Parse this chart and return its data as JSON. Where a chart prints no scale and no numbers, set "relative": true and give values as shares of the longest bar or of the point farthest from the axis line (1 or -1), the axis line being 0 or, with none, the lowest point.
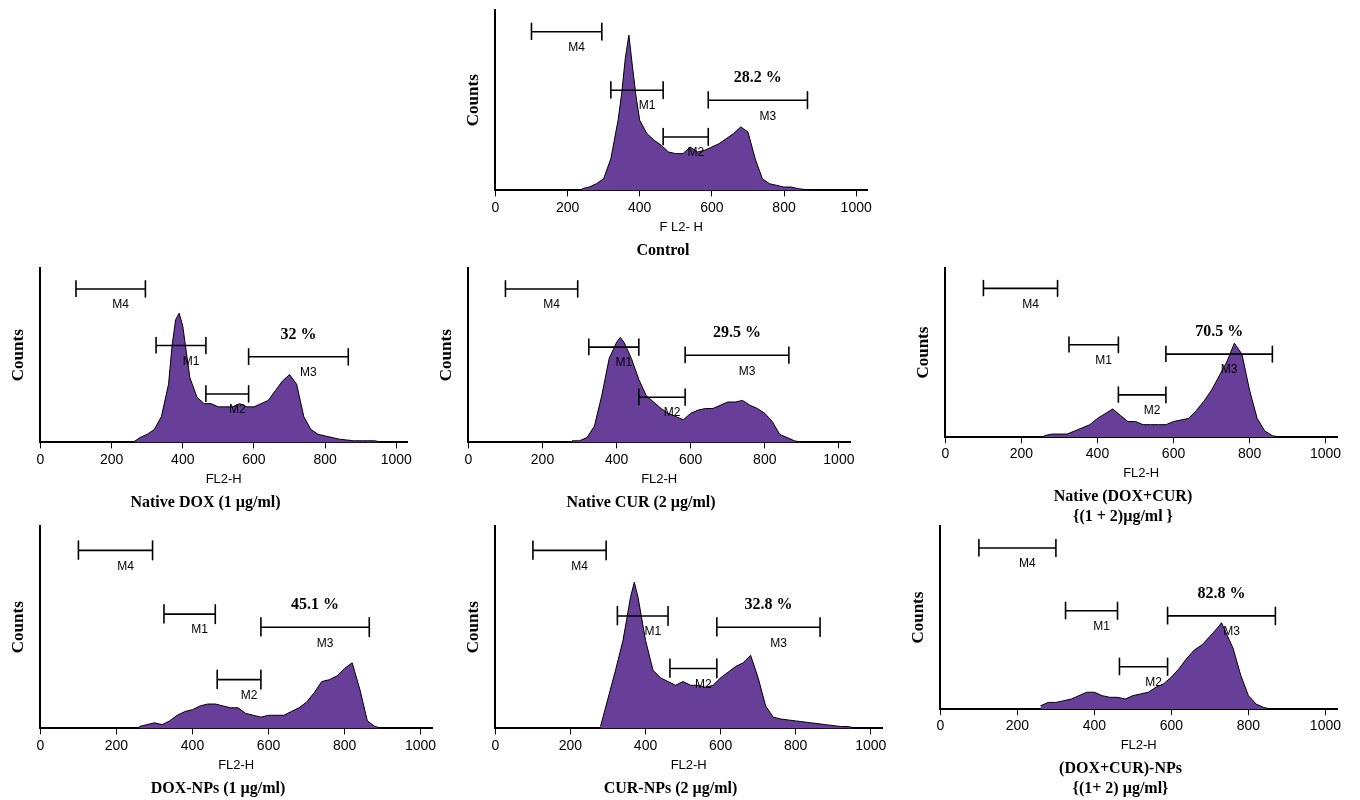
{
  "chart_data": [
    {
      "type": "area",
      "relative": true,
      "title": "Control",
      "xlabel": "F L2- H",
      "ylabel": "Counts",
      "xlim": [
        0,
        1030
      ],
      "xticks": [
        0,
        200,
        400,
        600,
        800,
        1000
      ],
      "grid": false,
      "legend": false,
      "marker": "none",
      "series": [
        {
          "color": "#673e98",
          "x": [
            240,
            260,
            280,
            300,
            320,
            340,
            350,
            360,
            370,
            380,
            390,
            400,
            420,
            440,
            460,
            480,
            500,
            520,
            540,
            560,
            580,
            600,
            620,
            640,
            660,
            680,
            700,
            720,
            740,
            760,
            780,
            800,
            820,
            840,
            860,
            880
          ],
          "values": [
            0.01,
            0.02,
            0.04,
            0.07,
            0.19,
            0.42,
            0.58,
            0.79,
            0.93,
            0.74,
            0.56,
            0.42,
            0.34,
            0.3,
            0.27,
            0.23,
            0.22,
            0.22,
            0.26,
            0.23,
            0.24,
            0.26,
            0.28,
            0.31,
            0.34,
            0.38,
            0.35,
            0.19,
            0.07,
            0.04,
            0.03,
            0.02,
            0.02,
            0.01,
            0.005,
            0
          ]
        },
        {
          "type": "line",
          "name": "M4",
          "color": "#000000",
          "x": [
            100,
            100,
            100,
            295,
            295,
            295
          ],
          "values": [
            0.9,
            1,
            0.95,
            0.95,
            1,
            0.9
          ]
        },
        {
          "type": "line",
          "name": "M1",
          "color": "#000000",
          "x": [
            320,
            320,
            320,
            465,
            465,
            465
          ],
          "values": [
            0.55,
            0.65,
            0.6,
            0.6,
            0.65,
            0.55
          ]
        },
        {
          "type": "line",
          "name": "M2",
          "color": "#000000",
          "x": [
            465,
            465,
            465,
            590,
            590,
            590
          ],
          "values": [
            0.27,
            0.37,
            0.32,
            0.32,
            0.37,
            0.27
          ]
        },
        {
          "type": "line",
          "name": "M3",
          "color": "#000000",
          "x": [
            590,
            590,
            590,
            865,
            865,
            865
          ],
          "values": [
            0.49,
            0.59,
            0.54,
            0.54,
            0.59,
            0.49
          ]
        }
      ],
      "annotations": [
        "28.2 %"
      ]
    },
    {
      "type": "area",
      "relative": true,
      "title": "Native DOX (1 µg/ml)",
      "xlabel": "FL2-H",
      "ylabel": "Counts",
      "xlim": [
        0,
        1030
      ],
      "xticks": [
        0,
        200,
        400,
        600,
        800,
        1000
      ],
      "grid": false,
      "legend": false,
      "marker": "none",
      "series": [
        {
          "color": "#673e98",
          "x": [
            260,
            280,
            300,
            320,
            340,
            360,
            370,
            380,
            390,
            400,
            410,
            420,
            440,
            460,
            480,
            500,
            520,
            540,
            560,
            580,
            600,
            620,
            640,
            660,
            680,
            700,
            720,
            740,
            760,
            780,
            800,
            840,
            880,
            920,
            940,
            960
          ],
          "values": [
            0,
            0.03,
            0.05,
            0.08,
            0.16,
            0.36,
            0.6,
            0.76,
            0.8,
            0.72,
            0.56,
            0.4,
            0.28,
            0.24,
            0.24,
            0.22,
            0.22,
            0.22,
            0.24,
            0.22,
            0.22,
            0.24,
            0.26,
            0.32,
            0.38,
            0.42,
            0.36,
            0.16,
            0.08,
            0.05,
            0.04,
            0.02,
            0.01,
            0.01,
            0.01,
            0
          ]
        },
        {
          "type": "line",
          "name": "M4",
          "color": "#000000",
          "x": [
            100,
            100,
            100,
            295,
            295,
            295
          ],
          "values": [
            0.9,
            1,
            0.95,
            0.95,
            1,
            0.9
          ]
        },
        {
          "type": "line",
          "name": "M1",
          "color": "#000000",
          "x": [
            325,
            325,
            325,
            465,
            465,
            465
          ],
          "values": [
            0.55,
            0.65,
            0.6,
            0.6,
            0.65,
            0.55
          ]
        },
        {
          "type": "line",
          "name": "M2",
          "color": "#000000",
          "x": [
            465,
            465,
            465,
            585,
            585,
            585
          ],
          "values": [
            0.25,
            0.35,
            0.3,
            0.3,
            0.35,
            0.25
          ]
        },
        {
          "type": "line",
          "name": "M3",
          "color": "#000000",
          "x": [
            585,
            585,
            585,
            865,
            865,
            865
          ],
          "values": [
            0.48,
            0.58,
            0.53,
            0.53,
            0.58,
            0.48
          ]
        }
      ],
      "annotations": [
        "32 %"
      ]
    },
    {
      "type": "area",
      "relative": true,
      "title": "Native CUR (2 µg/ml)",
      "xlabel": "FL2-H",
      "ylabel": "Counts",
      "xlim": [
        0,
        1030
      ],
      "xticks": [
        0,
        200,
        400,
        600,
        800,
        1000
      ],
      "grid": false,
      "legend": false,
      "marker": "none",
      "series": [
        {
          "color": "#673e98",
          "x": [
            280,
            300,
            320,
            340,
            360,
            380,
            400,
            410,
            420,
            440,
            460,
            480,
            500,
            520,
            540,
            560,
            580,
            600,
            620,
            640,
            660,
            680,
            700,
            720,
            740,
            760,
            780,
            800,
            820,
            840,
            860,
            880,
            900
          ],
          "values": [
            0.01,
            0.01,
            0.03,
            0.1,
            0.29,
            0.52,
            0.62,
            0.65,
            0.62,
            0.52,
            0.39,
            0.29,
            0.25,
            0.21,
            0.18,
            0.16,
            0.14,
            0.18,
            0.2,
            0.21,
            0.21,
            0.23,
            0.25,
            0.25,
            0.26,
            0.23,
            0.21,
            0.18,
            0.13,
            0.05,
            0.03,
            0.01,
            0
          ]
        },
        {
          "type": "line",
          "name": "M4",
          "color": "#000000",
          "x": [
            100,
            100,
            100,
            295,
            295,
            295
          ],
          "values": [
            0.9,
            1,
            0.95,
            0.95,
            1,
            0.9
          ]
        },
        {
          "type": "line",
          "name": "M1",
          "color": "#000000",
          "x": [
            325,
            325,
            325,
            460,
            460,
            460
          ],
          "values": [
            0.54,
            0.64,
            0.59,
            0.59,
            0.64,
            0.54
          ]
        },
        {
          "type": "line",
          "name": "M2",
          "color": "#000000",
          "x": [
            460,
            460,
            460,
            585,
            585,
            585
          ],
          "values": [
            0.23,
            0.33,
            0.28,
            0.28,
            0.33,
            0.23
          ]
        },
        {
          "type": "line",
          "name": "M3",
          "color": "#000000",
          "x": [
            585,
            585,
            585,
            865,
            865,
            865
          ],
          "values": [
            0.49,
            0.59,
            0.54,
            0.54,
            0.59,
            0.49
          ]
        }
      ],
      "annotations": [
        "29.5 %"
      ]
    },
    {
      "type": "area",
      "relative": true,
      "title": "Native (DOX+CUR)",
      "subtitle": "{(1 + 2)µg/ml }",
      "xlabel": "FL2-H",
      "ylabel": "Counts",
      "xlim": [
        0,
        1030
      ],
      "xticks": [
        0,
        200,
        400,
        600,
        800,
        1000
      ],
      "grid": false,
      "legend": false,
      "marker": "none",
      "series": [
        {
          "color": "#673e98",
          "x": [
            260,
            280,
            300,
            320,
            340,
            360,
            380,
            400,
            420,
            440,
            460,
            480,
            500,
            520,
            540,
            560,
            580,
            600,
            620,
            640,
            660,
            680,
            700,
            720,
            740,
            760,
            780,
            800,
            820,
            840,
            860,
            880
          ],
          "values": [
            0.01,
            0.02,
            0.02,
            0.02,
            0.04,
            0.06,
            0.08,
            0.12,
            0.15,
            0.18,
            0.14,
            0.1,
            0.1,
            0.08,
            0.08,
            0.08,
            0.08,
            0.1,
            0.11,
            0.12,
            0.17,
            0.23,
            0.3,
            0.39,
            0.48,
            0.6,
            0.53,
            0.3,
            0.12,
            0.04,
            0.01,
            0
          ]
        },
        {
          "type": "line",
          "name": "M4",
          "color": "#000000",
          "x": [
            100,
            100,
            100,
            295,
            295,
            295
          ],
          "values": [
            0.9,
            1,
            0.95,
            0.95,
            1,
            0.9
          ]
        },
        {
          "type": "line",
          "name": "M1",
          "color": "#000000",
          "x": [
            325,
            325,
            325,
            455,
            455,
            455
          ],
          "values": [
            0.54,
            0.64,
            0.59,
            0.59,
            0.64,
            0.54
          ]
        },
        {
          "type": "line",
          "name": "M2",
          "color": "#000000",
          "x": [
            455,
            455,
            455,
            580,
            580,
            580
          ],
          "values": [
            0.22,
            0.32,
            0.27,
            0.27,
            0.32,
            0.22
          ]
        },
        {
          "type": "line",
          "name": "M3",
          "color": "#000000",
          "x": [
            580,
            580,
            580,
            860,
            860,
            860
          ],
          "values": [
            0.48,
            0.58,
            0.53,
            0.53,
            0.58,
            0.48
          ]
        }
      ],
      "annotations": [
        "70.5 %"
      ]
    },
    {
      "type": "area",
      "relative": true,
      "title": "DOX-NPs (1 µg/ml)",
      "xlabel": "FL2-H",
      "ylabel": "Counts",
      "xlim": [
        0,
        1030
      ],
      "xticks": [
        0,
        200,
        400,
        600,
        800,
        1000
      ],
      "grid": false,
      "legend": false,
      "marker": "none",
      "series": [
        {
          "color": "#673e98",
          "x": [
            260,
            280,
            300,
            320,
            340,
            360,
            380,
            400,
            420,
            440,
            460,
            480,
            500,
            520,
            540,
            560,
            580,
            600,
            620,
            640,
            660,
            680,
            700,
            720,
            740,
            760,
            780,
            800,
            820,
            840,
            860,
            880,
            900
          ],
          "values": [
            0.01,
            0.02,
            0.03,
            0.02,
            0.04,
            0.07,
            0.09,
            0.1,
            0.12,
            0.13,
            0.13,
            0.12,
            0.11,
            0.11,
            0.08,
            0.07,
            0.06,
            0.07,
            0.07,
            0.07,
            0.09,
            0.11,
            0.14,
            0.19,
            0.25,
            0.26,
            0.28,
            0.32,
            0.35,
            0.21,
            0.04,
            0.01,
            0
          ]
        },
        {
          "type": "line",
          "name": "M4",
          "color": "#000000",
          "x": [
            100,
            100,
            100,
            295,
            295,
            295
          ],
          "values": [
            0.9,
            1,
            0.95,
            0.95,
            1,
            0.9
          ]
        },
        {
          "type": "line",
          "name": "M1",
          "color": "#000000",
          "x": [
            325,
            325,
            325,
            460,
            460,
            460
          ],
          "values": [
            0.56,
            0.66,
            0.61,
            0.61,
            0.66,
            0.56
          ]
        },
        {
          "type": "line",
          "name": "M2",
          "color": "#000000",
          "x": [
            465,
            465,
            465,
            580,
            580,
            580
          ],
          "values": [
            0.21,
            0.31,
            0.26,
            0.26,
            0.31,
            0.21
          ]
        },
        {
          "type": "line",
          "name": "M3",
          "color": "#000000",
          "x": [
            580,
            580,
            580,
            865,
            865,
            865
          ],
          "values": [
            0.49,
            0.59,
            0.54,
            0.54,
            0.59,
            0.49
          ]
        }
      ],
      "annotations": [
        "45.1 %"
      ]
    },
    {
      "type": "area",
      "relative": true,
      "title": "CUR-NPs (2 µg/ml)",
      "xlabel": "FL2-H",
      "ylabel": "Counts",
      "xlim": [
        0,
        1030
      ],
      "xticks": [
        0,
        200,
        400,
        600,
        800,
        1000
      ],
      "grid": false,
      "legend": false,
      "marker": "none",
      "series": [
        {
          "color": "#673e98",
          "x": [
            280,
            300,
            320,
            340,
            360,
            370,
            380,
            400,
            420,
            440,
            460,
            480,
            500,
            520,
            540,
            560,
            580,
            600,
            620,
            640,
            660,
            680,
            700,
            720,
            740,
            760,
            800,
            840,
            880,
            920,
            940,
            960
          ],
          "values": [
            0.01,
            0.16,
            0.31,
            0.47,
            0.7,
            0.78,
            0.7,
            0.47,
            0.31,
            0.27,
            0.25,
            0.23,
            0.25,
            0.23,
            0.23,
            0.22,
            0.23,
            0.27,
            0.3,
            0.33,
            0.35,
            0.39,
            0.27,
            0.12,
            0.06,
            0.05,
            0.04,
            0.03,
            0.02,
            0.01,
            0.01,
            0
          ]
        },
        {
          "type": "line",
          "name": "M4",
          "color": "#000000",
          "x": [
            100,
            100,
            100,
            295,
            295,
            295
          ],
          "values": [
            0.9,
            1,
            0.95,
            0.95,
            1,
            0.9
          ]
        },
        {
          "type": "line",
          "name": "M1",
          "color": "#000000",
          "x": [
            325,
            325,
            325,
            460,
            460,
            460
          ],
          "values": [
            0.55,
            0.65,
            0.6,
            0.6,
            0.65,
            0.55
          ]
        },
        {
          "type": "line",
          "name": "M2",
          "color": "#000000",
          "x": [
            465,
            465,
            465,
            590,
            590,
            590
          ],
          "values": [
            0.27,
            0.37,
            0.32,
            0.32,
            0.37,
            0.27
          ]
        },
        {
          "type": "line",
          "name": "M3",
          "color": "#000000",
          "x": [
            590,
            590,
            590,
            865,
            865,
            865
          ],
          "values": [
            0.49,
            0.59,
            0.54,
            0.54,
            0.59,
            0.49
          ]
        }
      ],
      "annotations": [
        "32.8 %"
      ]
    },
    {
      "type": "area",
      "relative": true,
      "title": "(DOX+CUR)-NPs",
      "subtitle": "{(1+ 2) µg/ml}",
      "xlabel": "FL2-H",
      "ylabel": "Counts",
      "xlim": [
        0,
        1030
      ],
      "xticks": [
        0,
        200,
        400,
        600,
        800,
        1000
      ],
      "grid": false,
      "legend": false,
      "marker": "none",
      "series": [
        {
          "color": "#673e98",
          "x": [
            260,
            280,
            300,
            320,
            340,
            360,
            380,
            400,
            420,
            440,
            460,
            480,
            500,
            520,
            540,
            560,
            580,
            600,
            620,
            640,
            660,
            680,
            700,
            720,
            730,
            740,
            760,
            780,
            800,
            820,
            840,
            860
          ],
          "values": [
            0.02,
            0.04,
            0.04,
            0.05,
            0.06,
            0.08,
            0.1,
            0.1,
            0.08,
            0.07,
            0.07,
            0.06,
            0.08,
            0.09,
            0.1,
            0.13,
            0.15,
            0.19,
            0.24,
            0.3,
            0.35,
            0.38,
            0.43,
            0.48,
            0.51,
            0.46,
            0.36,
            0.2,
            0.08,
            0.03,
            0.01,
            0
          ]
        },
        {
          "type": "line",
          "name": "M4",
          "color": "#000000",
          "x": [
            100,
            100,
            100,
            300,
            300,
            300
          ],
          "values": [
            0.9,
            1,
            0.95,
            0.95,
            1,
            0.9
          ]
        },
        {
          "type": "line",
          "name": "M1",
          "color": "#000000",
          "x": [
            325,
            325,
            325,
            460,
            460,
            460
          ],
          "values": [
            0.53,
            0.63,
            0.58,
            0.58,
            0.63,
            0.53
          ]
        },
        {
          "type": "line",
          "name": "M2",
          "color": "#000000",
          "x": [
            465,
            465,
            465,
            590,
            590,
            590
          ],
          "values": [
            0.2,
            0.3,
            0.25,
            0.25,
            0.3,
            0.2
          ]
        },
        {
          "type": "line",
          "name": "M3",
          "color": "#000000",
          "x": [
            590,
            590,
            590,
            870,
            870,
            870
          ],
          "values": [
            0.5,
            0.6,
            0.55,
            0.55,
            0.6,
            0.5
          ]
        }
      ],
      "annotations": [
        "82.8 %"
      ]
    }
  ]
}
